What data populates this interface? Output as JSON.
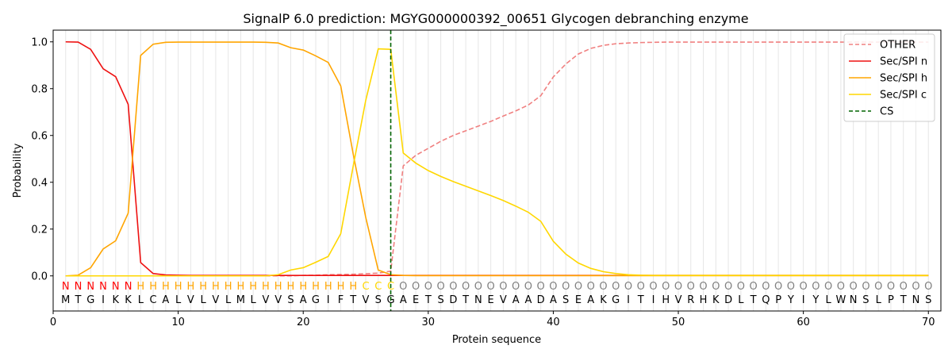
{
  "chart_data": {
    "type": "line",
    "title": "SignalP 6.0 prediction: MGYG000000392_00651 Glycogen debranching enzyme",
    "xlabel": "Protein sequence",
    "ylabel": "Probability",
    "xlim": [
      0,
      71
    ],
    "ylim": [
      -0.15,
      1.05
    ],
    "x_ticks": [
      0,
      10,
      20,
      30,
      40,
      50,
      60,
      70
    ],
    "y_ticks": [
      0.0,
      0.2,
      0.4,
      0.6,
      0.8,
      1.0
    ],
    "grid": "vertical lines at each residue",
    "legend_position": "top-right",
    "cs_position": 27,
    "sequence": [
      "M",
      "T",
      "G",
      "I",
      "K",
      "K",
      "L",
      "C",
      "A",
      "L",
      "V",
      "L",
      "V",
      "L",
      "M",
      "L",
      "V",
      "V",
      "S",
      "A",
      "G",
      "I",
      "F",
      "T",
      "V",
      "S",
      "G",
      "A",
      "E",
      "T",
      "S",
      "D",
      "T",
      "N",
      "E",
      "V",
      "A",
      "A",
      "D",
      "A",
      "S",
      "E",
      "A",
      "K",
      "G",
      "I",
      "T",
      "I",
      "H",
      "V",
      "R",
      "H",
      "K",
      "D",
      "L",
      "T",
      "Q",
      "P",
      "Y",
      "I",
      "Y",
      "L",
      "W",
      "N",
      "S",
      "L",
      "P",
      "T",
      "N",
      "S"
    ],
    "labels": [
      "N",
      "N",
      "N",
      "N",
      "N",
      "N",
      "H",
      "H",
      "H",
      "H",
      "H",
      "H",
      "H",
      "H",
      "H",
      "H",
      "H",
      "H",
      "H",
      "H",
      "H",
      "H",
      "H",
      "H",
      "C",
      "C",
      "C",
      "O",
      "O",
      "O",
      "O",
      "O",
      "O",
      "O",
      "O",
      "O",
      "O",
      "O",
      "O",
      "O",
      "O",
      "O",
      "O",
      "O",
      "O",
      "O",
      "O",
      "O",
      "O",
      "O",
      "O",
      "O",
      "O",
      "O",
      "O",
      "O",
      "O",
      "O",
      "O",
      "O",
      "O",
      "O",
      "O",
      "O",
      "O",
      "O",
      "O",
      "O",
      "O",
      "O"
    ],
    "label_colors": {
      "N": "#ff0000",
      "H": "#ffa500",
      "C": "#ffd700",
      "O": "#808080"
    },
    "series": [
      {
        "name": "OTHER",
        "color": "#f08080",
        "dash": "dashed",
        "values": [
          0.0,
          0.0,
          0.0,
          0.0,
          0.0,
          0.0,
          0.0,
          0.0,
          0.0,
          0.0,
          0.0,
          0.0,
          0.0,
          0.0,
          0.0,
          0.0,
          0.0,
          0.0,
          0.0,
          0.002,
          0.003,
          0.005,
          0.006,
          0.007,
          0.009,
          0.012,
          0.02,
          0.47,
          0.515,
          0.545,
          0.575,
          0.6,
          0.62,
          0.64,
          0.66,
          0.683,
          0.705,
          0.73,
          0.77,
          0.85,
          0.905,
          0.948,
          0.972,
          0.985,
          0.992,
          0.995,
          0.997,
          0.998,
          0.999,
          0.999,
          0.999,
          0.999,
          0.999,
          0.999,
          0.999,
          0.999,
          0.999,
          0.999,
          0.999,
          0.999,
          0.999,
          0.999,
          0.999,
          0.999,
          0.999,
          0.999,
          0.999,
          0.999,
          0.999,
          0.999
        ]
      },
      {
        "name": "Sec/SPI n",
        "color": "#ee1111",
        "dash": "solid",
        "values": [
          1.0,
          0.999,
          0.968,
          0.885,
          0.851,
          0.733,
          0.057,
          0.01,
          0.004,
          0.003,
          0.002,
          0.002,
          0.002,
          0.002,
          0.002,
          0.002,
          0.002,
          0.002,
          0.002,
          0.002,
          0.002,
          0.002,
          0.002,
          0.002,
          0.002,
          0.002,
          0.002,
          0.002,
          0.002,
          0.002,
          0.002,
          0.002,
          0.002,
          0.002,
          0.002,
          0.002,
          0.002,
          0.002,
          0.002,
          0.002,
          0.002,
          0.002,
          0.002,
          0.002,
          0.002,
          0.002,
          0.002,
          0.002,
          0.002,
          0.002,
          0.002,
          0.002,
          0.002,
          0.002,
          0.002,
          0.002,
          0.002,
          0.002,
          0.002,
          0.002,
          0.002,
          0.002,
          0.002,
          0.002,
          0.002,
          0.002,
          0.002,
          0.002,
          0.002,
          0.002
        ]
      },
      {
        "name": "Sec/SPI h",
        "color": "#ffa500",
        "dash": "solid",
        "values": [
          0.0,
          0.003,
          0.035,
          0.115,
          0.15,
          0.268,
          0.942,
          0.99,
          0.998,
          0.999,
          0.999,
          0.999,
          0.999,
          0.999,
          0.999,
          0.999,
          0.998,
          0.995,
          0.975,
          0.965,
          0.94,
          0.912,
          0.812,
          0.52,
          0.25,
          0.025,
          0.005,
          0.002,
          0.001,
          0.001,
          0.001,
          0.001,
          0.001,
          0.001,
          0.001,
          0.001,
          0.001,
          0.001,
          0.001,
          0.001,
          0.001,
          0.001,
          0.001,
          0.001,
          0.001,
          0.001,
          0.001,
          0.001,
          0.001,
          0.001,
          0.001,
          0.001,
          0.001,
          0.001,
          0.001,
          0.001,
          0.001,
          0.001,
          0.001,
          0.001,
          0.001,
          0.001,
          0.001,
          0.001,
          0.001,
          0.001,
          0.001,
          0.001,
          0.001,
          0.001
        ]
      },
      {
        "name": "Sec/SPI c",
        "color": "#ffd700",
        "dash": "solid",
        "values": [
          0.0,
          0.0,
          0.0,
          0.0,
          0.0,
          0.0,
          0.0,
          0.0,
          0.0,
          0.0,
          0.0,
          0.0,
          0.0,
          0.0,
          0.0,
          0.0,
          0.0,
          0.005,
          0.025,
          0.035,
          0.058,
          0.083,
          0.18,
          0.47,
          0.75,
          0.97,
          0.968,
          0.525,
          0.482,
          0.45,
          0.425,
          0.403,
          0.383,
          0.363,
          0.343,
          0.322,
          0.298,
          0.272,
          0.233,
          0.148,
          0.093,
          0.055,
          0.032,
          0.018,
          0.01,
          0.005,
          0.003,
          0.002,
          0.002,
          0.002,
          0.002,
          0.002,
          0.002,
          0.002,
          0.002,
          0.002,
          0.002,
          0.002,
          0.002,
          0.002,
          0.002,
          0.002,
          0.002,
          0.002,
          0.002,
          0.002,
          0.002,
          0.002,
          0.002,
          0.002
        ]
      }
    ],
    "cs_marker": {
      "name": "CS",
      "color": "#006400",
      "dash": "dashed"
    }
  }
}
